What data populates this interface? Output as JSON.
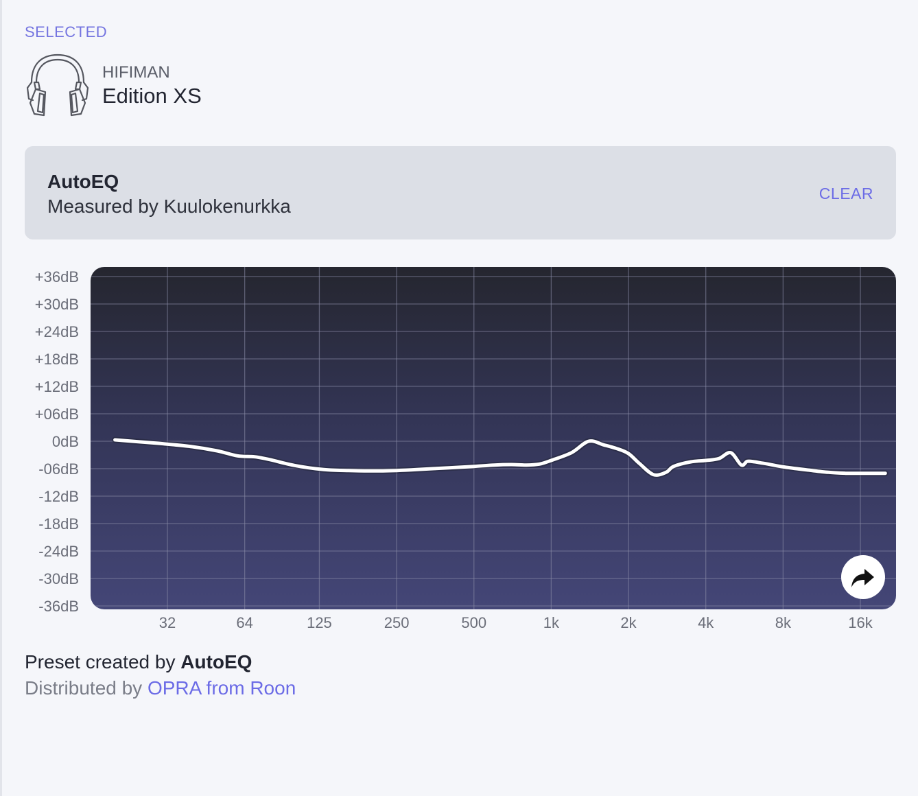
{
  "section": {
    "label": "SELECTED"
  },
  "device": {
    "brand": "HIFIMAN",
    "model": "Edition XS",
    "icon": "headphones-icon"
  },
  "preset": {
    "name": "AutoEQ",
    "measured_by": "Measured by Kuulokenurkka",
    "clear_label": "CLEAR"
  },
  "chart_data": {
    "type": "line",
    "title": "",
    "xlabel": "",
    "ylabel": "",
    "x_scale": "log",
    "y_ticks": [
      "+36dB",
      "+30dB",
      "+24dB",
      "+18dB",
      "+12dB",
      "+06dB",
      "0dB",
      "-06dB",
      "-12dB",
      "-18dB",
      "-24dB",
      "-30dB",
      "-36dB"
    ],
    "x_ticks": [
      "32",
      "64",
      "125",
      "250",
      "500",
      "1k",
      "2k",
      "4k",
      "8k",
      "16k"
    ],
    "x_tick_values": [
      32,
      64,
      125,
      250,
      500,
      1000,
      2000,
      4000,
      8000,
      16000
    ],
    "xlim": [
      20,
      20000
    ],
    "ylim": [
      -36,
      36
    ],
    "grid": true,
    "series": [
      {
        "x": [
          20,
          30,
          40,
          50,
          60,
          70,
          80,
          100,
          130,
          160,
          200,
          250,
          300,
          400,
          500,
          600,
          700,
          800,
          900,
          1000,
          1200,
          1400,
          1600,
          1800,
          2000,
          2200,
          2500,
          2800,
          3000,
          3500,
          4000,
          4500,
          5000,
          5500,
          5800,
          6200,
          6500,
          7000,
          8000,
          10000,
          12000,
          14000,
          16000,
          18000,
          20000
        ],
        "y": [
          0.3,
          -0.5,
          -1.2,
          -2.1,
          -3.2,
          -3.4,
          -4.0,
          -5.3,
          -6.2,
          -6.4,
          -6.5,
          -6.4,
          -6.2,
          -5.8,
          -5.5,
          -5.2,
          -5.1,
          -5.2,
          -5.0,
          -4.2,
          -2.5,
          0.0,
          -0.8,
          -1.6,
          -2.7,
          -4.8,
          -7.3,
          -6.8,
          -5.5,
          -4.5,
          -4.2,
          -3.8,
          -2.5,
          -5.2,
          -4.4,
          -4.5,
          -4.7,
          -5.0,
          -5.6,
          -6.3,
          -6.8,
          -7.0,
          -7.0,
          -7.0,
          -7.0
        ]
      }
    ]
  },
  "share": {
    "icon": "share-arrow-icon"
  },
  "footer": {
    "created_prefix": "Preset created by ",
    "created_by": "AutoEQ",
    "distributed_prefix": "Distributed by ",
    "distributed_by": "OPRA from Roon"
  }
}
